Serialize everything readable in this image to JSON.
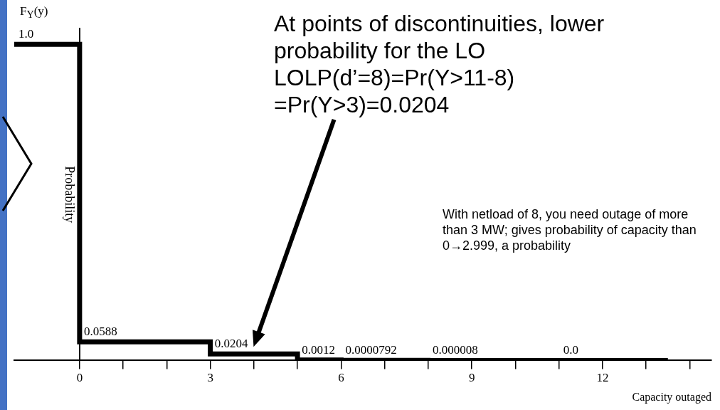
{
  "chart_data": {
    "type": "step",
    "title": "F$_{Y}$(y)",
    "xlabel": "Capacity outaged",
    "ylabel": "Probability",
    "x": [
      -1.5,
      0,
      3,
      5,
      6,
      8,
      11,
      13.5
    ],
    "series": [
      {
        "color": "#000000",
        "values": [
          1,
          0.0588,
          0.0204,
          0.0012,
          7.92e-05,
          8e-06,
          0,
          0
        ],
        "value_labels": [
          "1.0",
          "0.0588",
          "0.0204",
          "0.0012",
          "0.0000792",
          "0.000008",
          "0.0",
          null
        ]
      }
    ],
    "xlim": [
      -1.5,
      14.5
    ],
    "ylim": [
      0,
      1.05
    ],
    "xticks": [
      0,
      {
        "value": 1,
        "label": null
      },
      {
        "value": 2,
        "label": null
      },
      3,
      {
        "value": 4,
        "label": null
      },
      {
        "value": 5,
        "label": null
      },
      6,
      {
        "value": 7,
        "label": null
      },
      {
        "value": 8,
        "label": null
      },
      9,
      {
        "value": 10,
        "label": null
      },
      {
        "value": 11,
        "label": null
      },
      12,
      {
        "value": 13,
        "label": null
      },
      {
        "value": 14,
        "label": null
      }
    ],
    "tick_labels": "x",
    "marker": "none",
    "line_style": "solid",
    "annotations": [
      "At points of discontinuities, lower probability for the LO",
      "LOLP(d’=8)=Pr(Y>11-8) =Pr(Y>3)=0.0204",
      "With netload of 8, you need outage of more than 3 MW; gives probability of capacity than  0→2.999, a probability"
    ]
  }
}
